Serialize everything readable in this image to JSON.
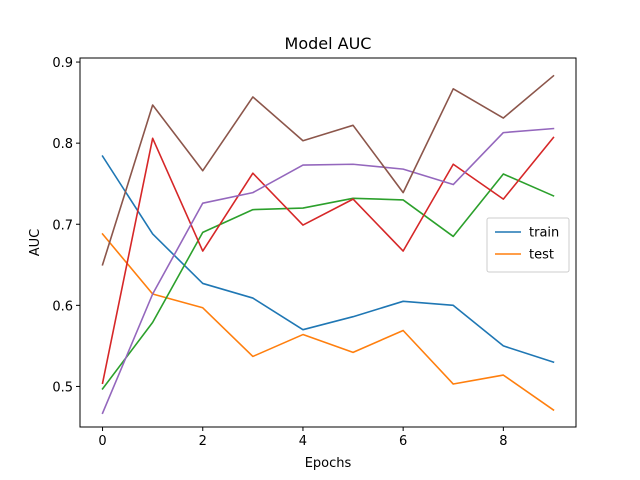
{
  "chart_data": {
    "type": "line",
    "title": "Model AUC",
    "xlabel": "Epochs",
    "ylabel": "AUC",
    "x": [
      0,
      1,
      2,
      3,
      4,
      5,
      6,
      7,
      8,
      9
    ],
    "xlim": [
      -0.45,
      9.45
    ],
    "ylim": [
      0.45,
      0.905
    ],
    "xticks": [
      0,
      2,
      4,
      6,
      8
    ],
    "yticks": [
      0.5,
      0.6,
      0.7,
      0.8,
      0.9
    ],
    "grid": false,
    "legend_position": "right",
    "series": [
      {
        "name": "train",
        "color": "#1f77b4",
        "values": [
          0.784,
          0.688,
          0.627,
          0.609,
          0.57,
          0.586,
          0.605,
          0.6,
          0.55,
          0.53
        ]
      },
      {
        "name": "test",
        "color": "#ff7f0e",
        "values": [
          0.688,
          0.614,
          0.597,
          0.537,
          0.564,
          0.542,
          0.569,
          0.503,
          0.514,
          0.471
        ]
      },
      {
        "color": "#2ca02c",
        "values": [
          0.497,
          0.579,
          0.69,
          0.718,
          0.72,
          0.732,
          0.73,
          0.685,
          0.762,
          0.735
        ]
      },
      {
        "color": "#d62728",
        "values": [
          0.504,
          0.806,
          0.667,
          0.763,
          0.699,
          0.731,
          0.667,
          0.774,
          0.731,
          0.807
        ]
      },
      {
        "color": "#9467bd",
        "values": [
          0.467,
          0.614,
          0.726,
          0.739,
          0.773,
          0.774,
          0.768,
          0.749,
          0.813,
          0.818
        ]
      },
      {
        "color": "#8c564b",
        "values": [
          0.65,
          0.847,
          0.766,
          0.857,
          0.803,
          0.822,
          0.739,
          0.867,
          0.831,
          0.883
        ]
      }
    ],
    "legend_entries": [
      "train",
      "test"
    ]
  }
}
